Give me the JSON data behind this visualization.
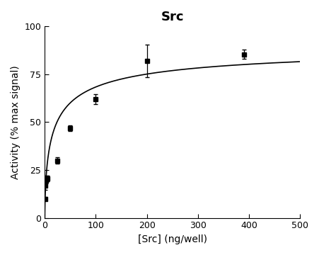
{
  "title": "Src",
  "xlabel": "[Src] (ng/well)",
  "ylabel": "Activity (% max signal)",
  "xlim": [
    0,
    500
  ],
  "ylim": [
    0,
    100
  ],
  "xticks": [
    0,
    100,
    200,
    300,
    400,
    500
  ],
  "yticks": [
    0,
    25,
    50,
    75,
    100
  ],
  "x_data": [
    0.5,
    1.5,
    2.5,
    3.5,
    5.0,
    25.0,
    50.0,
    100.0,
    200.0,
    390.0
  ],
  "y_data": [
    10.0,
    17.0,
    19.5,
    20.5,
    20.5,
    30.0,
    47.0,
    62.0,
    82.0,
    85.5
  ],
  "y_err": [
    1.0,
    2.5,
    1.5,
    1.5,
    1.5,
    1.5,
    1.5,
    2.5,
    8.5,
    2.5
  ],
  "Vmax": 92.0,
  "K": 18.0,
  "n": 0.62,
  "marker": "s",
  "markersize": 4,
  "linecolor": "#000000",
  "markercolor": "#000000",
  "background_color": "#ffffff",
  "title_fontsize": 13,
  "label_fontsize": 10,
  "tick_fontsize": 9
}
